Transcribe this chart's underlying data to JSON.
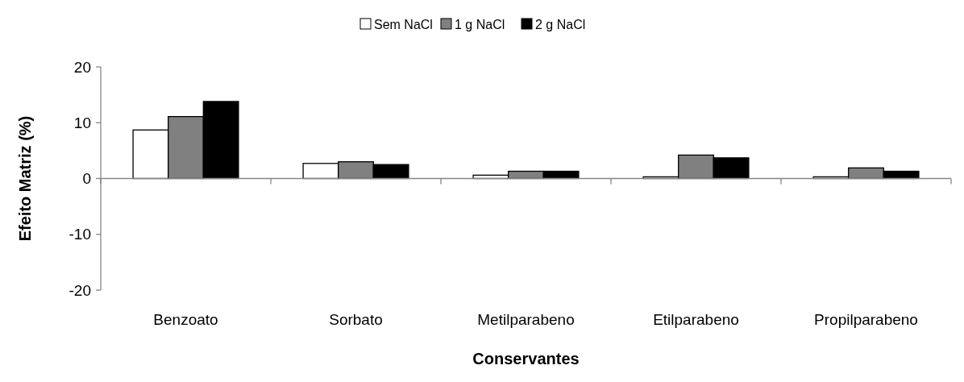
{
  "chart_data": {
    "type": "bar",
    "xlabel": "Conservantes",
    "ylabel": "Efeito Matriz (%)",
    "categories": [
      "Benzoato",
      "Sorbato",
      "Metilparabeno",
      "Etilparabeno",
      "Propilparabeno"
    ],
    "series": [
      {
        "name": "Sem NaCl",
        "color": "#ffffff",
        "values": [
          8.7,
          2.7,
          0.6,
          0.3,
          0.3
        ]
      },
      {
        "name": "1 g NaCl",
        "color": "#808080",
        "values": [
          11.1,
          3.0,
          1.3,
          4.2,
          1.9
        ]
      },
      {
        "name": "2 g NaCl",
        "color": "#000000",
        "values": [
          13.8,
          2.5,
          1.3,
          3.7,
          1.3
        ]
      }
    ],
    "ylim": [
      -20,
      20
    ],
    "yticks": [
      -20,
      -10,
      0,
      10,
      20
    ],
    "legend": "top"
  }
}
